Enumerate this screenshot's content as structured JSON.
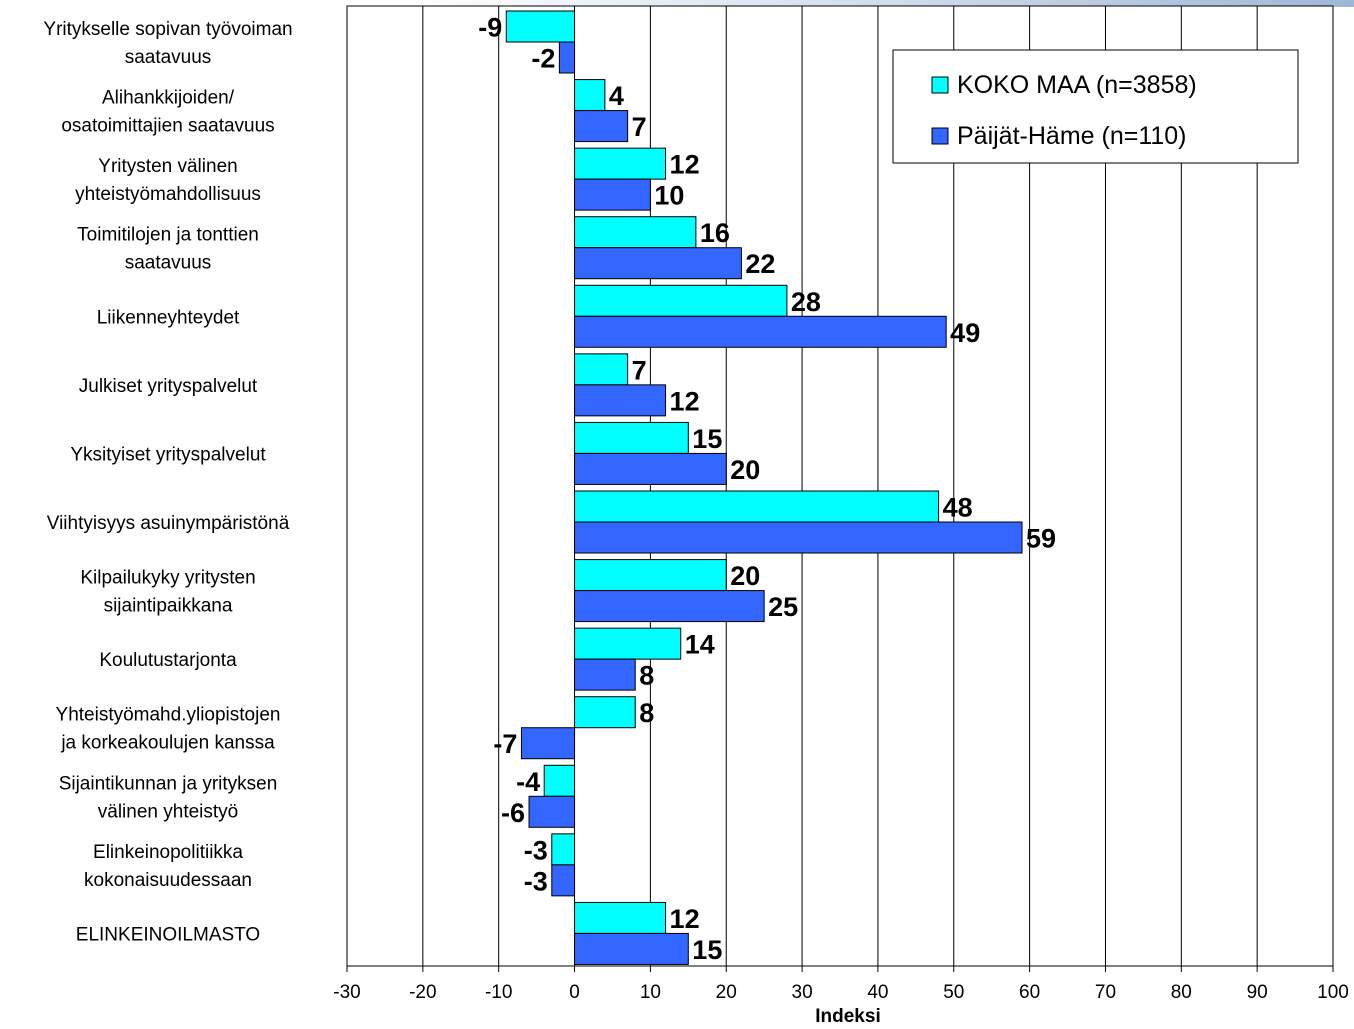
{
  "chart_data": {
    "type": "bar",
    "orientation": "horizontal",
    "title": "",
    "xlabel": "Indeksi",
    "ylabel": "",
    "xlim": [
      -30,
      100
    ],
    "x_ticks": [
      -30,
      -20,
      -10,
      0,
      10,
      20,
      30,
      40,
      50,
      60,
      70,
      80,
      90,
      100
    ],
    "grid": "vertical",
    "legend_position": "top-right",
    "categories": [
      [
        "Yritykselle sopivan työvoiman",
        "saatavuus"
      ],
      [
        "Alihankkijoiden/",
        "osatoimittajien saatavuus"
      ],
      [
        "Yritysten välinen",
        "yhteistyömahdollisuus"
      ],
      [
        "Toimitilojen ja tonttien",
        "saatavuus"
      ],
      [
        "Liikenneyhteydet"
      ],
      [
        "Julkiset yrityspalvelut"
      ],
      [
        "Yksityiset yrityspalvelut"
      ],
      [
        "Viihtyisyys asuinympäristönä"
      ],
      [
        "Kilpailukyky yritysten",
        "sijaintipaikkana"
      ],
      [
        "Koulutustarjonta"
      ],
      [
        "Yhteistyömahd.yliopistojen",
        "ja korkeakoulujen kanssa"
      ],
      [
        "Sijaintikunnan ja yrityksen",
        "välinen yhteistyö"
      ],
      [
        "Elinkeinopolitiikka",
        "kokonaisuudessaan"
      ],
      [
        "ELINKEINOILMASTO"
      ]
    ],
    "series": [
      {
        "name": "KOKO MAA (n=3858)",
        "color": "#00ffff",
        "values": [
          -9,
          4,
          12,
          16,
          28,
          7,
          15,
          48,
          20,
          14,
          8,
          -4,
          -3,
          12
        ]
      },
      {
        "name": "Päijät-Häme (n=110)",
        "color": "#3366ff",
        "values": [
          -2,
          7,
          10,
          22,
          49,
          12,
          20,
          59,
          25,
          8,
          -7,
          -6,
          -3,
          15
        ]
      }
    ]
  }
}
